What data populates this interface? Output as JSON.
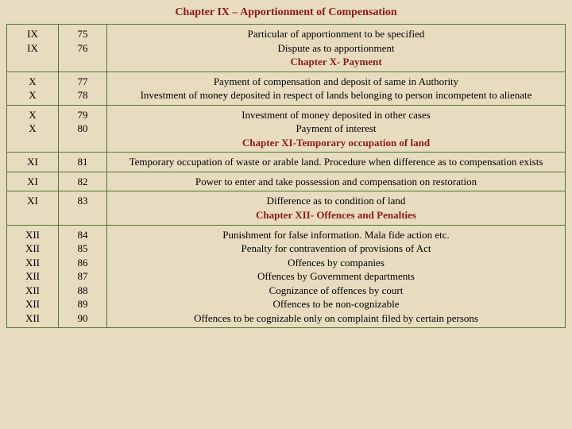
{
  "title": "Chapter IX – Apportionment of Compensation",
  "colors": {
    "background": "#e8dcc0",
    "border": "#4a7a2a",
    "heading": "#8b1a1a",
    "text": "#000000"
  },
  "rows": [
    {
      "c1": "IX\nIX",
      "c2": "75\n76",
      "lines": [
        {
          "text": "Particular of apportionment to be specified",
          "bold": false
        },
        {
          "text": "Dispute as to apportionment",
          "bold": false
        },
        {
          "text": "Chapter X- Payment",
          "bold": true
        }
      ]
    },
    {
      "c1": "X\nX",
      "c2": "77\n78",
      "lines": [
        {
          "text": "Payment of compensation and deposit of same in Authority",
          "bold": false
        },
        {
          "text": "Investment of money deposited in respect of lands belonging to person incompetent to alienate",
          "bold": false
        }
      ]
    },
    {
      "c1": "X\nX",
      "c2": "79\n80",
      "lines": [
        {
          "text": "Investment of money deposited in other cases",
          "bold": false
        },
        {
          "text": "Payment of interest",
          "bold": false
        },
        {
          "text": "Chapter XI-Temporary occupation of land",
          "bold": true
        }
      ]
    },
    {
      "c1": "XI",
      "c2": "81",
      "lines": [
        {
          "text": "Temporary occupation of waste or arable land. Procedure when difference as to compensation exists",
          "bold": false
        }
      ]
    },
    {
      "c1": "XI",
      "c2": "82",
      "lines": [
        {
          "text": "Power to enter and take possession and compensation on restoration",
          "bold": false
        }
      ]
    },
    {
      "c1": "XI",
      "c2": "83",
      "lines": [
        {
          "text": "Difference as to condition of land",
          "bold": false
        },
        {
          "text": "Chapter XII- Offences and Penalties",
          "bold": true
        }
      ]
    },
    {
      "c1": "XII\nXII\nXII\nXII\nXII\nXII\nXII",
      "c2": "84\n85\n86\n87\n88\n89\n90",
      "lines": [
        {
          "text": "Punishment for false information. Mala fide action etc.",
          "bold": false
        },
        {
          "text": "Penalty for contravention of provisions of Act",
          "bold": false
        },
        {
          "text": "Offences by companies",
          "bold": false
        },
        {
          "text": "Offences by Government departments",
          "bold": false
        },
        {
          "text": "Cognizance of offences by court",
          "bold": false
        },
        {
          "text": "Offences to be non-cognizable",
          "bold": false
        },
        {
          "text": "Offences to be cognizable only on complaint filed by certain persons",
          "bold": false
        }
      ]
    }
  ]
}
